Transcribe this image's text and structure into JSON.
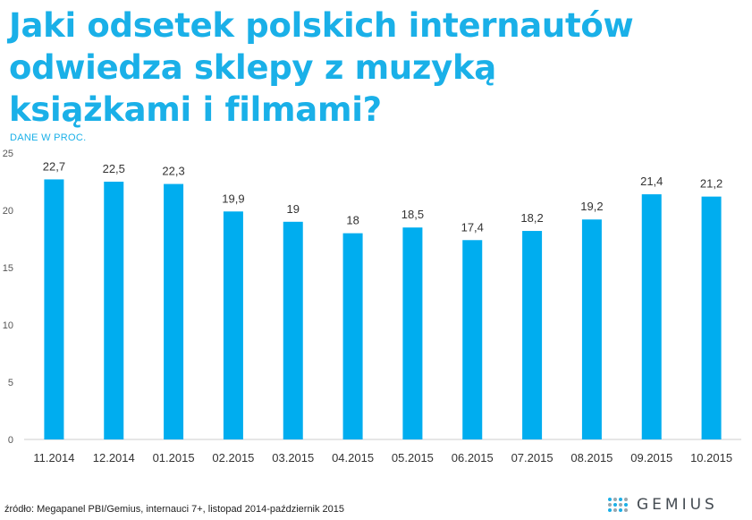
{
  "title_lines": [
    "Jaki odsetek polskich internautów",
    "odwiedza sklepy z muzyką",
    "książkami i filmami?"
  ],
  "subtitle": "DANE W PROC.",
  "source": "źródło: Megapanel PBI/Gemius, internauci 7+, listopad 2014-październik 2015",
  "logo_text": "GEMIUS",
  "colors": {
    "accent": "#1ab0e8",
    "bar": "#00adef",
    "axis": "#cccccc",
    "text": "#333333"
  },
  "chart_data": {
    "type": "bar",
    "categories": [
      "11.2014",
      "12.2014",
      "01.2015",
      "02.2015",
      "03.2015",
      "04.2015",
      "05.2015",
      "06.2015",
      "07.2015",
      "08.2015",
      "09.2015",
      "10.2015"
    ],
    "values": [
      22.7,
      22.5,
      22.3,
      19.9,
      19,
      18,
      18.5,
      17.4,
      18.2,
      19.2,
      21.4,
      21.2
    ],
    "value_labels": [
      "22,7",
      "22,5",
      "22,3",
      "19,9",
      "19",
      "18",
      "18,5",
      "17,4",
      "18,2",
      "19,2",
      "21,4",
      "21,2"
    ],
    "y_ticks": [
      0,
      5,
      10,
      15,
      20,
      25
    ],
    "ylim": [
      0,
      25
    ],
    "grid": false,
    "title": "Jaki odsetek polskich internautów odwiedza sklepy z muzyką książkami i filmami?",
    "xlabel": "",
    "ylabel": ""
  }
}
